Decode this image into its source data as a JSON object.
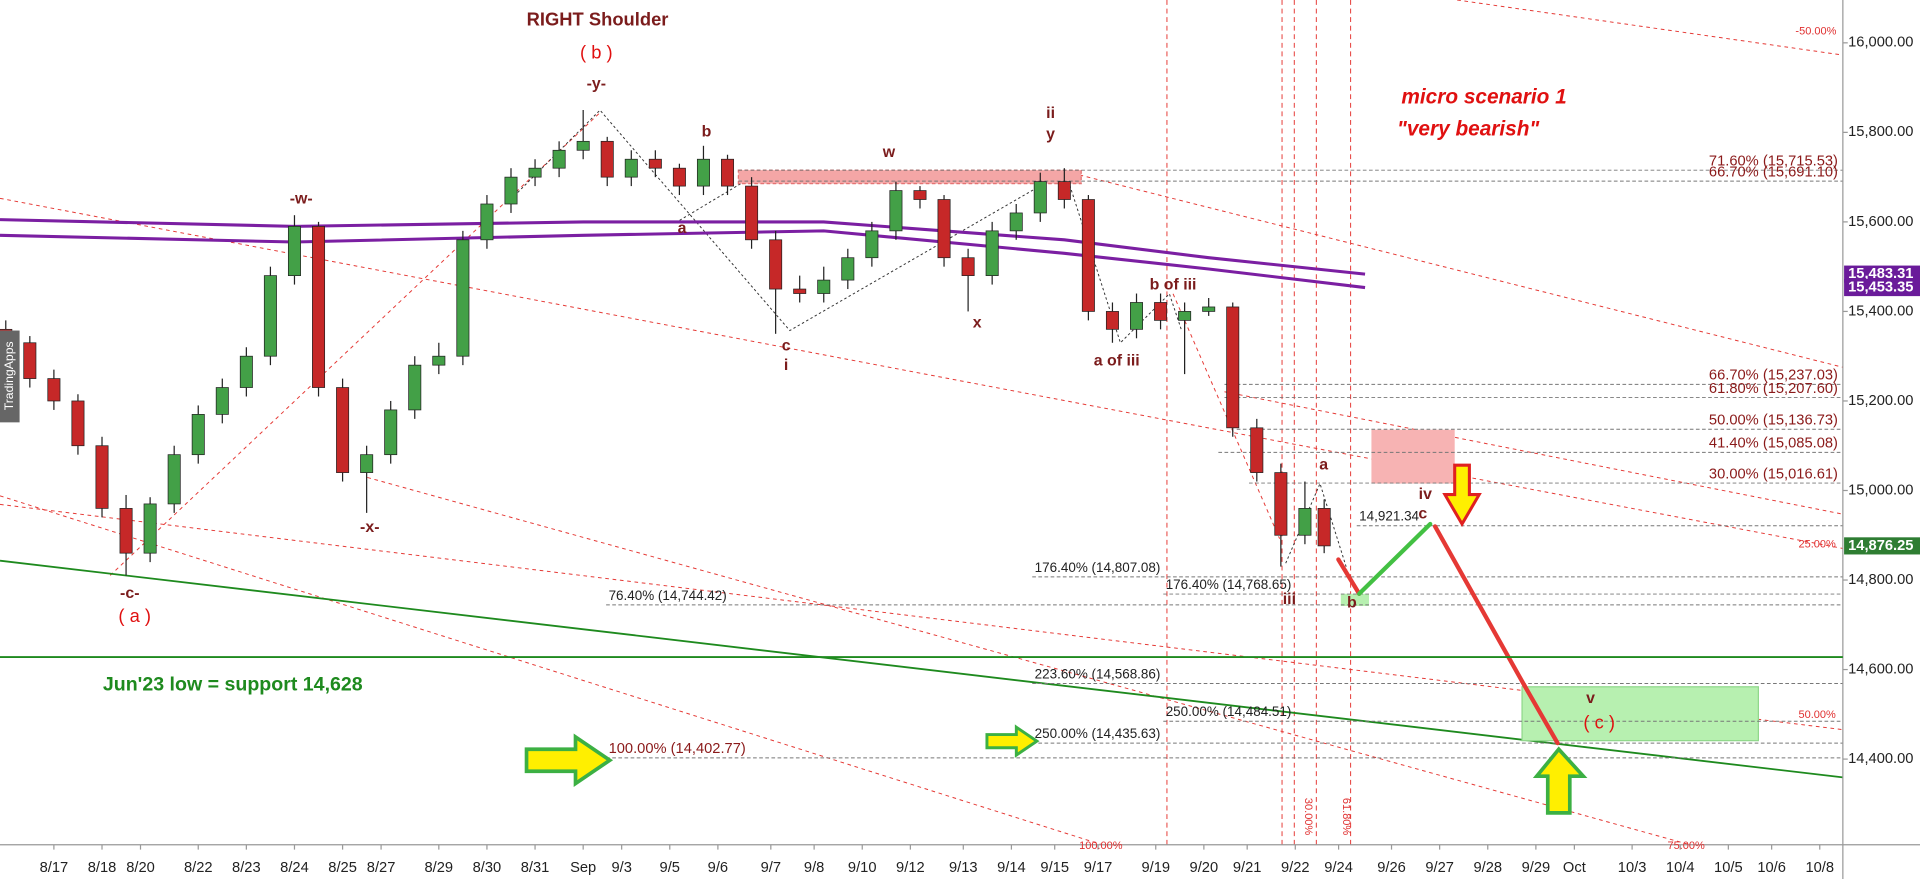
{
  "chart_data": {
    "type": "candlestick",
    "xlim": [
      -1.12,
      37.18
    ],
    "ylim": [
      14208.7,
      16095.7
    ],
    "up_color": "#43a047",
    "down_color": "#c62828",
    "xticks": [
      {
        "value": 0,
        "label": "8/17"
      },
      {
        "value": 1,
        "label": "8/18"
      },
      {
        "value": 1.8,
        "label": "8/20"
      },
      {
        "value": 3,
        "label": "8/22"
      },
      {
        "value": 4,
        "label": "8/23"
      },
      {
        "value": 5,
        "label": "8/24"
      },
      {
        "value": 6,
        "label": "8/25"
      },
      {
        "value": 6.8,
        "label": "8/27"
      },
      {
        "value": 8,
        "label": "8/29"
      },
      {
        "value": 9,
        "label": "8/30"
      },
      {
        "value": 10,
        "label": "8/31"
      },
      {
        "value": 11,
        "label": "Sep"
      },
      {
        "value": 11.8,
        "label": "9/3"
      },
      {
        "value": 12.8,
        "label": "9/5"
      },
      {
        "value": 13.8,
        "label": "9/6"
      },
      {
        "value": 14.9,
        "label": "9/7"
      },
      {
        "value": 15.8,
        "label": "9/8"
      },
      {
        "value": 16.8,
        "label": "9/10"
      },
      {
        "value": 17.8,
        "label": "9/12"
      },
      {
        "value": 18.9,
        "label": "9/13"
      },
      {
        "value": 19.9,
        "label": "9/14"
      },
      {
        "value": 20.8,
        "label": "9/15"
      },
      {
        "value": 21.7,
        "label": "9/17"
      },
      {
        "value": 22.9,
        "label": "9/19"
      },
      {
        "value": 23.9,
        "label": "9/20"
      },
      {
        "value": 24.8,
        "label": "9/21"
      },
      {
        "value": 25.8,
        "label": "9/22"
      },
      {
        "value": 26.7,
        "label": "9/24"
      },
      {
        "value": 27.8,
        "label": "9/26"
      },
      {
        "value": 28.8,
        "label": "9/27"
      },
      {
        "value": 29.8,
        "label": "9/28"
      },
      {
        "value": 30.8,
        "label": "9/29"
      },
      {
        "value": 31.6,
        "label": "Oct"
      },
      {
        "value": 32.8,
        "label": "10/3"
      },
      {
        "value": 33.8,
        "label": "10/4"
      },
      {
        "value": 34.8,
        "label": "10/5"
      },
      {
        "value": 35.7,
        "label": "10/6"
      },
      {
        "value": 36.7,
        "label": "10/8"
      }
    ],
    "yticks": [
      {
        "value": 14400,
        "label": "14,400.00"
      },
      {
        "value": 14600,
        "label": "14,600.00"
      },
      {
        "value": 14800,
        "label": "14,800.00"
      },
      {
        "value": 15000,
        "label": "15,000.00"
      },
      {
        "value": 15200,
        "label": "15,200.00"
      },
      {
        "value": 15400,
        "label": "15,400.00"
      },
      {
        "value": 15600,
        "label": "15,600.00"
      },
      {
        "value": 15800,
        "label": "15,800.00"
      },
      {
        "value": 16000,
        "label": "16,000.00"
      }
    ],
    "x": [
      -1.0,
      -0.5,
      0,
      0.5,
      1.0,
      1.5,
      2.0,
      2.5,
      3.0,
      3.5,
      4.0,
      4.5,
      5.0,
      5.5,
      6.0,
      6.5,
      7.0,
      7.5,
      8.0,
      8.5,
      9.0,
      9.5,
      10.0,
      10.5,
      11.0,
      11.5,
      12.0,
      12.5,
      13.0,
      13.5,
      14.0,
      14.5,
      15.0,
      15.5,
      16.0,
      16.5,
      17.0,
      17.5,
      18.0,
      18.5,
      19.0,
      19.5,
      20.0,
      20.5,
      21.0,
      21.5,
      22.0,
      22.5,
      23.0,
      23.5,
      24.0,
      24.5,
      25.0,
      25.5,
      26.0,
      26.4
    ],
    "open": [
      15360,
      15330,
      15250,
      15200,
      15100,
      14960,
      14860,
      14970,
      15080,
      15170,
      15230,
      15300,
      15480,
      15590,
      15230,
      15040,
      15080,
      15180,
      15280,
      15300,
      15560,
      15640,
      15700,
      15720,
      15760,
      15780,
      15700,
      15740,
      15720,
      15680,
      15740,
      15680,
      15560,
      15450,
      15440,
      15470,
      15520,
      15580,
      15670,
      15650,
      15520,
      15480,
      15580,
      15620,
      15690,
      15650,
      15400,
      15360,
      15420,
      15380,
      15400,
      15410,
      15140,
      15040,
      14900,
      14960
    ],
    "high": [
      15380,
      15345,
      15270,
      15215,
      15120,
      14990,
      14985,
      15100,
      15190,
      15250,
      15320,
      15500,
      15615,
      15600,
      15250,
      15100,
      15200,
      15300,
      15330,
      15580,
      15660,
      15720,
      15740,
      15780,
      15850,
      15790,
      15760,
      15760,
      15730,
      15770,
      15750,
      15700,
      15580,
      15480,
      15500,
      15540,
      15600,
      15690,
      15680,
      15660,
      15540,
      15600,
      15640,
      15710,
      15720,
      15660,
      15420,
      15440,
      15440,
      15420,
      15430,
      15420,
      15160,
      15060,
      15020,
      14980
    ],
    "low": [
      15310,
      15230,
      15180,
      15080,
      14940,
      14810,
      14840,
      14950,
      15060,
      15150,
      15210,
      15280,
      15460,
      15210,
      15020,
      14950,
      15060,
      15160,
      15260,
      15280,
      15540,
      15620,
      15680,
      15700,
      15740,
      15680,
      15680,
      15700,
      15660,
      15660,
      15660,
      15540,
      15350,
      15420,
      15420,
      15450,
      15500,
      15560,
      15630,
      15500,
      15400,
      15460,
      15560,
      15600,
      15630,
      15380,
      15330,
      15340,
      15360,
      15260,
      15390,
      15120,
      15020,
      14830,
      14880,
      14860
    ],
    "close": [
      15330,
      15250,
      15200,
      15100,
      14960,
      14860,
      14970,
      15080,
      15170,
      15230,
      15300,
      15480,
      15590,
      15230,
      15040,
      15080,
      15180,
      15280,
      15300,
      15560,
      15640,
      15700,
      15720,
      15760,
      15780,
      15700,
      15740,
      15720,
      15680,
      15740,
      15680,
      15560,
      15450,
      15440,
      15470,
      15520,
      15580,
      15670,
      15650,
      15520,
      15480,
      15580,
      15620,
      15690,
      15650,
      15400,
      15360,
      15420,
      15380,
      15400,
      15410,
      15140,
      15040,
      14900,
      14960,
      14876.25
    ],
    "moving_averages": [
      {
        "color": "#7b1fa2",
        "x": [
          -1.12,
          5,
          11,
          16,
          21,
          24,
          27.25
        ],
        "values": [
          15605,
          15590,
          15600,
          15600,
          15560,
          15520,
          15483.31
        ]
      },
      {
        "color": "#7b1fa2",
        "x": [
          -1.12,
          5,
          11,
          16,
          21,
          24,
          27.25
        ],
        "values": [
          15570,
          15555,
          15570,
          15580,
          15530,
          15495,
          15453.35
        ]
      }
    ],
    "price_labels": [
      {
        "value": 15483.31,
        "label": "15,483.31",
        "color": "#6a1b9a"
      },
      {
        "value": 15453.35,
        "label": "15,453.35",
        "color": "#6a1b9a"
      },
      {
        "value": 14876.25,
        "label": "14,876.25",
        "color": "#2e7d32"
      }
    ],
    "fib_levels": [
      {
        "value": 15715.53,
        "label": "71.60% (15,715.53)"
      },
      {
        "value": 15691.1,
        "label": "66.70% (15,691.10)"
      },
      {
        "value": 15237.03,
        "label": "66.70% (15,237.03)"
      },
      {
        "value": 15207.6,
        "label": "61.80% (15,207.60)"
      },
      {
        "value": 15136.73,
        "label": "50.00% (15,136.73)"
      },
      {
        "value": 15085.08,
        "label": "41.40% (15,085.08)"
      },
      {
        "value": 15016.61,
        "label": "30.00% (15,016.61)"
      },
      {
        "value": 14921.34,
        "label": "14,921.34"
      },
      {
        "value": 14807.08,
        "label": "176.40% (14,807.08)"
      },
      {
        "value": 14768.65,
        "label": "176.40% (14,768.65)"
      },
      {
        "value": 14744.42,
        "label": "76.40% (14,744.42)"
      },
      {
        "value": 14568.86,
        "label": "223.60% (14,568.86)"
      },
      {
        "value": 14484.51,
        "label": "250.00% (14,484.51)"
      },
      {
        "value": 14435.63,
        "label": "250.00% (14,435.63)"
      },
      {
        "value": 14402.77,
        "label": "100.00% (14,402.77)"
      }
    ],
    "support": {
      "value": 14628,
      "label": "Jun'23 low =  support 14,628",
      "color": "#1e8a1e"
    },
    "annotations": [
      "RIGHT Shoulder",
      "( b )",
      "-y-",
      "-w-",
      "-c-",
      "( a )",
      "-x-",
      "b",
      "a",
      "w",
      "c",
      "i",
      "x",
      "ii",
      "y",
      "b of iii",
      "a of iii",
      "a",
      "iv",
      "c",
      "iii",
      "b",
      "v",
      "( c )",
      "micro scenario 1",
      "\"very bearish\"",
      "-50.00%",
      "25.00%",
      "50.00%",
      "75.00%",
      "100.00%",
      "30.00%",
      "61.80%",
      "TradingApps"
    ]
  }
}
